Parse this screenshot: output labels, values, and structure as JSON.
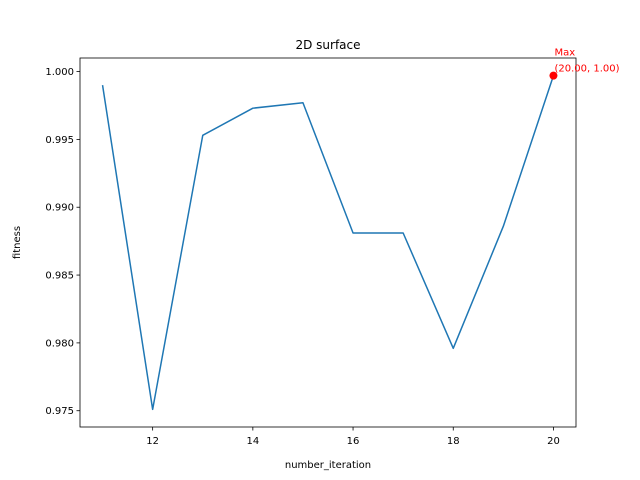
{
  "chart_data": {
    "type": "line",
    "title": "2D surface",
    "xlabel": "number_iteration",
    "ylabel": "fitness",
    "x": [
      11,
      12,
      13,
      14,
      15,
      16,
      17,
      18,
      19,
      20
    ],
    "series": [
      {
        "values": [
          0.999,
          0.9751,
          0.9953,
          0.9973,
          0.9977,
          0.9881,
          0.9881,
          0.9796,
          0.9886,
          0.9997
        ],
        "color": "#1f77b4"
      }
    ],
    "xlim": [
      10.55,
      20.45
    ],
    "ylim": [
      0.9738,
      1.001
    ],
    "x_ticks": [
      12,
      14,
      16,
      18,
      20
    ],
    "x_tick_labels": [
      "12",
      "14",
      "16",
      "18",
      "20"
    ],
    "y_ticks": [
      0.975,
      0.98,
      0.985,
      0.99,
      0.995,
      1.0
    ],
    "y_tick_labels": [
      "0.975",
      "0.980",
      "0.985",
      "0.990",
      "0.995",
      "1.000"
    ],
    "grid": false,
    "annotation": {
      "x": 20,
      "y": 0.9997,
      "line1": "Max",
      "line2": "(20.00, 1.00)",
      "color": "#ff0000"
    }
  }
}
